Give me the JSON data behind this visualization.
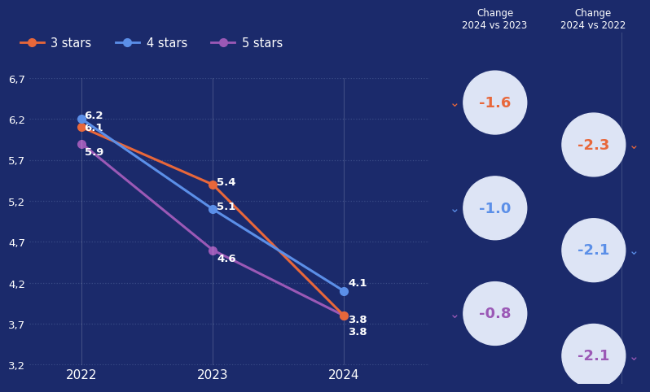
{
  "background_color": "#1b2a6b",
  "years": [
    2022,
    2023,
    2024
  ],
  "series": [
    {
      "label": "3 stars",
      "values": [
        6.1,
        5.4,
        3.8
      ],
      "color": "#e8673a",
      "zorder": 3
    },
    {
      "label": "4 stars",
      "values": [
        6.2,
        5.1,
        4.1
      ],
      "color": "#5b8fe8",
      "zorder": 4
    },
    {
      "label": "5 stars",
      "values": [
        5.9,
        4.6,
        3.8
      ],
      "color": "#9b59b6",
      "zorder": 2
    }
  ],
  "ylim": [
    3.2,
    6.7
  ],
  "yticks": [
    3.2,
    3.7,
    4.2,
    4.7,
    5.2,
    5.7,
    6.2,
    6.7
  ],
  "ytick_labels": [
    "3,2",
    "3,7",
    "4,2",
    "4,7",
    "5,2",
    "5,7",
    "6,2",
    "6,7"
  ],
  "grid_color": "#3d4f8a",
  "text_color": "#ffffff",
  "legend_entries": [
    "3 stars",
    "4 stars",
    "5 stars"
  ],
  "legend_colors": [
    "#e8673a",
    "#5b8fe8",
    "#9b59b6"
  ],
  "change_2024_vs_2023": {
    "title": "Change\n2024 vs 2023",
    "values": [
      "-1.6",
      "-1.0",
      "-0.8"
    ],
    "colors": [
      "#e8673a",
      "#5b8fe8",
      "#9b59b6"
    ]
  },
  "change_2024_vs_2022": {
    "title": "Change\n2024 vs 2022",
    "values": [
      "-2.3",
      "-2.1",
      "-2.1"
    ],
    "colors": [
      "#e8673a",
      "#5b8fe8",
      "#9b59b6"
    ]
  },
  "circle_bg": "#dde4f5",
  "divider_color": "#4a5a8a"
}
